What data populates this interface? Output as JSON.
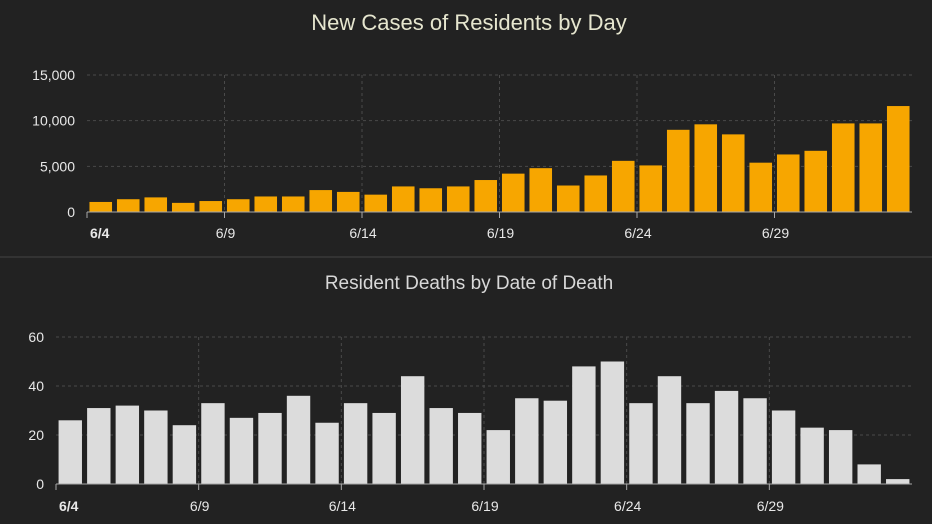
{
  "colors": {
    "background": "#222222",
    "grid": "#4a4a4a",
    "axis": "#a8a8a8",
    "tick_text": "#e8e8e8",
    "title_text": "#e6e6cf",
    "subtitle_text": "#d8d8d8",
    "cases_bar": "#f7a600",
    "deaths_bar": "#dcdcdc",
    "separator": "#444444"
  },
  "chart_data": [
    {
      "id": "cases",
      "type": "bar",
      "title": "New Cases of Residents by Day",
      "xlabel": "",
      "ylabel": "",
      "ylim": [
        0,
        15000
      ],
      "yticks": [
        0,
        5000,
        10000,
        15000
      ],
      "ytick_labels": [
        "0",
        "5,000",
        "10,000",
        "15,000"
      ],
      "grid": true,
      "categories": [
        "6/4",
        "6/5",
        "6/6",
        "6/7",
        "6/8",
        "6/9",
        "6/10",
        "6/11",
        "6/12",
        "6/13",
        "6/14",
        "6/15",
        "6/16",
        "6/17",
        "6/18",
        "6/19",
        "6/20",
        "6/21",
        "6/22",
        "6/23",
        "6/24",
        "6/25",
        "6/26",
        "6/27",
        "6/28",
        "6/29",
        "6/30",
        "7/1",
        "7/2",
        "7/3"
      ],
      "tick_labels": [
        {
          "index": 0,
          "label": "6/4",
          "bold": true
        },
        {
          "index": 5,
          "label": "6/9",
          "bold": false
        },
        {
          "index": 10,
          "label": "6/14",
          "bold": false
        },
        {
          "index": 15,
          "label": "6/19",
          "bold": false
        },
        {
          "index": 20,
          "label": "6/24",
          "bold": false
        },
        {
          "index": 25,
          "label": "6/29",
          "bold": false
        }
      ],
      "values": [
        1100,
        1400,
        1600,
        1000,
        1200,
        1400,
        1700,
        1700,
        2400,
        2200,
        1900,
        2800,
        2600,
        2800,
        3500,
        4200,
        4800,
        2900,
        4000,
        5600,
        5100,
        9000,
        9600,
        8500,
        5400,
        6300,
        6700,
        9700,
        9700,
        11600
      ]
    },
    {
      "id": "deaths",
      "type": "bar",
      "title": "Resident Deaths by Date of Death",
      "xlabel": "",
      "ylabel": "",
      "ylim": [
        0,
        60
      ],
      "yticks": [
        0,
        20,
        40,
        60
      ],
      "ytick_labels": [
        "0",
        "20",
        "40",
        "60"
      ],
      "grid": true,
      "categories": [
        "6/4",
        "6/5",
        "6/6",
        "6/7",
        "6/8",
        "6/9",
        "6/10",
        "6/11",
        "6/12",
        "6/13",
        "6/14",
        "6/15",
        "6/16",
        "6/17",
        "6/18",
        "6/19",
        "6/20",
        "6/21",
        "6/22",
        "6/23",
        "6/24",
        "6/25",
        "6/26",
        "6/27",
        "6/28",
        "6/29",
        "6/30",
        "7/1",
        "7/2",
        "7/3"
      ],
      "tick_labels": [
        {
          "index": 0,
          "label": "6/4",
          "bold": true
        },
        {
          "index": 5,
          "label": "6/9",
          "bold": false
        },
        {
          "index": 10,
          "label": "6/14",
          "bold": false
        },
        {
          "index": 15,
          "label": "6/19",
          "bold": false
        },
        {
          "index": 20,
          "label": "6/24",
          "bold": false
        },
        {
          "index": 25,
          "label": "6/29",
          "bold": false
        }
      ],
      "values": [
        26,
        31,
        32,
        30,
        24,
        33,
        27,
        29,
        36,
        25,
        33,
        29,
        44,
        31,
        29,
        22,
        35,
        34,
        48,
        50,
        33,
        44,
        33,
        38,
        35,
        30,
        23,
        22,
        8,
        2
      ]
    }
  ]
}
